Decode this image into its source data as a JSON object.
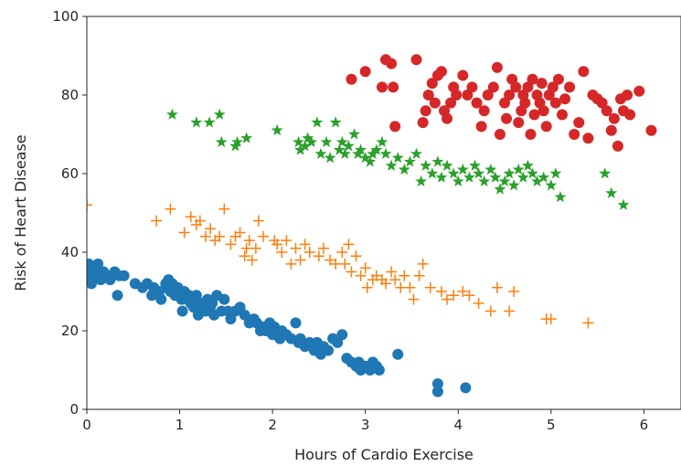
{
  "chart_data": {
    "type": "scatter",
    "title": "",
    "xlabel": "Hours of Cardio Exercise",
    "ylabel": "Risk of Heart Disease",
    "xlim": [
      0,
      6.4
    ],
    "ylim": [
      0,
      100
    ],
    "xticks": [
      0,
      1,
      2,
      3,
      4,
      5,
      6
    ],
    "yticks": [
      0,
      20,
      40,
      60,
      80,
      100
    ],
    "grid": false,
    "series": [
      {
        "color": "#1f77b4",
        "marker": "circle",
        "points": [
          [
            0.0,
            33
          ],
          [
            0.0,
            35
          ],
          [
            0.02,
            37
          ],
          [
            0.05,
            32
          ],
          [
            0.08,
            36
          ],
          [
            0.1,
            34
          ],
          [
            0.12,
            37
          ],
          [
            0.15,
            33
          ],
          [
            0.18,
            35
          ],
          [
            0.22,
            34
          ],
          [
            0.25,
            33
          ],
          [
            0.3,
            35
          ],
          [
            0.33,
            29
          ],
          [
            0.35,
            34
          ],
          [
            0.4,
            34
          ],
          [
            0.52,
            32
          ],
          [
            0.6,
            31
          ],
          [
            0.65,
            32
          ],
          [
            0.7,
            29
          ],
          [
            0.72,
            31
          ],
          [
            0.78,
            30
          ],
          [
            0.8,
            28
          ],
          [
            0.85,
            32
          ],
          [
            0.87,
            31
          ],
          [
            0.88,
            33
          ],
          [
            0.9,
            30
          ],
          [
            0.92,
            32
          ],
          [
            0.95,
            29
          ],
          [
            0.98,
            31
          ],
          [
            1.0,
            29
          ],
          [
            1.02,
            28
          ],
          [
            1.03,
            25
          ],
          [
            1.05,
            30
          ],
          [
            1.08,
            28
          ],
          [
            1.1,
            29
          ],
          [
            1.12,
            27
          ],
          [
            1.15,
            26
          ],
          [
            1.18,
            29
          ],
          [
            1.2,
            24
          ],
          [
            1.23,
            27
          ],
          [
            1.25,
            26
          ],
          [
            1.28,
            25
          ],
          [
            1.3,
            28
          ],
          [
            1.33,
            26
          ],
          [
            1.35,
            27
          ],
          [
            1.37,
            24
          ],
          [
            1.4,
            29
          ],
          [
            1.45,
            25
          ],
          [
            1.48,
            28
          ],
          [
            1.52,
            25
          ],
          [
            1.55,
            23
          ],
          [
            1.6,
            25
          ],
          [
            1.65,
            26
          ],
          [
            1.7,
            24
          ],
          [
            1.75,
            22
          ],
          [
            1.8,
            23
          ],
          [
            1.83,
            22
          ],
          [
            1.87,
            20
          ],
          [
            1.9,
            21
          ],
          [
            1.93,
            20
          ],
          [
            1.97,
            22
          ],
          [
            2.0,
            19
          ],
          [
            2.02,
            21
          ],
          [
            2.05,
            20
          ],
          [
            2.08,
            18
          ],
          [
            2.1,
            20
          ],
          [
            2.15,
            19
          ],
          [
            2.2,
            18
          ],
          [
            2.25,
            22
          ],
          [
            2.28,
            17
          ],
          [
            2.3,
            18
          ],
          [
            2.35,
            16
          ],
          [
            2.4,
            17
          ],
          [
            2.45,
            15
          ],
          [
            2.48,
            17
          ],
          [
            2.52,
            14
          ],
          [
            2.55,
            16
          ],
          [
            2.6,
            15
          ],
          [
            2.65,
            18
          ],
          [
            2.7,
            17
          ],
          [
            2.75,
            19
          ],
          [
            2.8,
            13
          ],
          [
            2.85,
            12
          ],
          [
            2.9,
            11
          ],
          [
            2.93,
            12
          ],
          [
            2.95,
            10
          ],
          [
            3.0,
            11
          ],
          [
            3.05,
            10
          ],
          [
            3.08,
            12
          ],
          [
            3.12,
            11
          ],
          [
            3.15,
            10
          ],
          [
            3.35,
            14
          ],
          [
            3.78,
            6.5
          ],
          [
            3.78,
            4.5
          ],
          [
            4.08,
            5.5
          ]
        ]
      },
      {
        "color": "#ff7f0e",
        "marker": "plus",
        "points": [
          [
            0.0,
            52
          ],
          [
            0.75,
            48
          ],
          [
            0.9,
            51
          ],
          [
            1.05,
            45
          ],
          [
            1.12,
            49
          ],
          [
            1.18,
            47
          ],
          [
            1.22,
            48
          ],
          [
            1.28,
            44
          ],
          [
            1.33,
            46
          ],
          [
            1.38,
            43
          ],
          [
            1.43,
            44
          ],
          [
            1.48,
            51
          ],
          [
            1.55,
            42
          ],
          [
            1.6,
            44
          ],
          [
            1.65,
            45
          ],
          [
            1.7,
            39
          ],
          [
            1.72,
            41
          ],
          [
            1.75,
            43
          ],
          [
            1.78,
            38
          ],
          [
            1.82,
            41
          ],
          [
            1.85,
            48
          ],
          [
            1.9,
            44
          ],
          [
            2.02,
            43
          ],
          [
            2.05,
            42
          ],
          [
            2.1,
            40
          ],
          [
            2.15,
            43
          ],
          [
            2.2,
            37
          ],
          [
            2.25,
            41
          ],
          [
            2.3,
            38
          ],
          [
            2.35,
            42
          ],
          [
            2.4,
            40
          ],
          [
            2.5,
            39
          ],
          [
            2.55,
            41
          ],
          [
            2.62,
            38
          ],
          [
            2.68,
            37
          ],
          [
            2.75,
            40
          ],
          [
            2.78,
            37
          ],
          [
            2.82,
            42
          ],
          [
            2.85,
            35
          ],
          [
            2.9,
            39
          ],
          [
            2.95,
            34
          ],
          [
            3.0,
            36
          ],
          [
            3.02,
            31
          ],
          [
            3.08,
            33
          ],
          [
            3.12,
            34
          ],
          [
            3.18,
            33
          ],
          [
            3.22,
            32
          ],
          [
            3.28,
            35
          ],
          [
            3.32,
            33
          ],
          [
            3.38,
            31
          ],
          [
            3.42,
            34
          ],
          [
            3.48,
            31
          ],
          [
            3.52,
            28
          ],
          [
            3.58,
            34
          ],
          [
            3.62,
            37
          ],
          [
            3.7,
            31
          ],
          [
            3.82,
            30
          ],
          [
            3.88,
            28
          ],
          [
            3.95,
            29
          ],
          [
            4.05,
            30
          ],
          [
            4.12,
            29
          ],
          [
            4.22,
            27
          ],
          [
            4.35,
            25
          ],
          [
            4.42,
            31
          ],
          [
            4.55,
            25
          ],
          [
            4.6,
            30
          ],
          [
            4.95,
            23
          ],
          [
            5.0,
            23
          ],
          [
            5.4,
            22
          ]
        ]
      },
      {
        "color": "#2ca02c",
        "marker": "star",
        "points": [
          [
            0.92,
            75
          ],
          [
            1.18,
            73
          ],
          [
            1.32,
            73
          ],
          [
            1.43,
            75
          ],
          [
            1.45,
            68
          ],
          [
            1.6,
            67
          ],
          [
            1.62,
            68
          ],
          [
            1.72,
            69
          ],
          [
            2.05,
            71
          ],
          [
            2.28,
            68
          ],
          [
            2.3,
            66
          ],
          [
            2.35,
            67
          ],
          [
            2.38,
            69
          ],
          [
            2.42,
            68
          ],
          [
            2.48,
            73
          ],
          [
            2.52,
            65
          ],
          [
            2.58,
            68
          ],
          [
            2.62,
            64
          ],
          [
            2.68,
            73
          ],
          [
            2.72,
            66
          ],
          [
            2.75,
            68
          ],
          [
            2.78,
            65
          ],
          [
            2.82,
            67
          ],
          [
            2.88,
            70
          ],
          [
            2.92,
            65
          ],
          [
            2.95,
            66
          ],
          [
            3.0,
            64
          ],
          [
            3.05,
            63
          ],
          [
            3.08,
            65
          ],
          [
            3.12,
            66
          ],
          [
            3.18,
            68
          ],
          [
            3.22,
            65
          ],
          [
            3.28,
            62
          ],
          [
            3.35,
            64
          ],
          [
            3.42,
            61
          ],
          [
            3.48,
            63
          ],
          [
            3.55,
            65
          ],
          [
            3.6,
            58
          ],
          [
            3.65,
            62
          ],
          [
            3.72,
            60
          ],
          [
            3.78,
            63
          ],
          [
            3.82,
            59
          ],
          [
            3.88,
            62
          ],
          [
            3.95,
            60
          ],
          [
            4.0,
            58
          ],
          [
            4.05,
            61
          ],
          [
            4.12,
            59
          ],
          [
            4.18,
            62
          ],
          [
            4.22,
            60
          ],
          [
            4.28,
            58
          ],
          [
            4.35,
            61
          ],
          [
            4.4,
            59
          ],
          [
            4.45,
            56
          ],
          [
            4.5,
            58
          ],
          [
            4.55,
            60
          ],
          [
            4.6,
            57
          ],
          [
            4.65,
            61
          ],
          [
            4.7,
            59
          ],
          [
            4.75,
            62
          ],
          [
            4.8,
            60
          ],
          [
            4.85,
            58
          ],
          [
            4.92,
            59
          ],
          [
            5.0,
            57
          ],
          [
            5.05,
            60
          ],
          [
            5.1,
            54
          ],
          [
            5.58,
            60
          ],
          [
            5.65,
            55
          ],
          [
            5.78,
            52
          ]
        ]
      },
      {
        "color": "#d62728",
        "marker": "circle",
        "points": [
          [
            2.85,
            84
          ],
          [
            3.0,
            86
          ],
          [
            3.18,
            82
          ],
          [
            3.22,
            89
          ],
          [
            3.28,
            88
          ],
          [
            3.3,
            82
          ],
          [
            3.32,
            72
          ],
          [
            3.55,
            89
          ],
          [
            3.62,
            73
          ],
          [
            3.65,
            76
          ],
          [
            3.68,
            80
          ],
          [
            3.72,
            83
          ],
          [
            3.75,
            78
          ],
          [
            3.78,
            85
          ],
          [
            3.82,
            86
          ],
          [
            3.85,
            76
          ],
          [
            3.88,
            74
          ],
          [
            3.92,
            78
          ],
          [
            3.95,
            82
          ],
          [
            3.98,
            80
          ],
          [
            4.05,
            85
          ],
          [
            4.1,
            80
          ],
          [
            4.15,
            82
          ],
          [
            4.2,
            78
          ],
          [
            4.25,
            72
          ],
          [
            4.28,
            76
          ],
          [
            4.32,
            80
          ],
          [
            4.38,
            82
          ],
          [
            4.42,
            87
          ],
          [
            4.45,
            70
          ],
          [
            4.5,
            78
          ],
          [
            4.52,
            74
          ],
          [
            4.55,
            80
          ],
          [
            4.58,
            84
          ],
          [
            4.62,
            82
          ],
          [
            4.65,
            73
          ],
          [
            4.68,
            76
          ],
          [
            4.7,
            80
          ],
          [
            4.72,
            78
          ],
          [
            4.75,
            82
          ],
          [
            4.78,
            70
          ],
          [
            4.8,
            84
          ],
          [
            4.82,
            75
          ],
          [
            4.85,
            80
          ],
          [
            4.88,
            78
          ],
          [
            4.9,
            83
          ],
          [
            4.92,
            76
          ],
          [
            4.95,
            72
          ],
          [
            4.98,
            80
          ],
          [
            5.02,
            82
          ],
          [
            5.05,
            78
          ],
          [
            5.08,
            84
          ],
          [
            5.12,
            75
          ],
          [
            5.15,
            79
          ],
          [
            5.2,
            82
          ],
          [
            5.25,
            70
          ],
          [
            5.3,
            73
          ],
          [
            5.35,
            86
          ],
          [
            5.4,
            69
          ],
          [
            5.45,
            80
          ],
          [
            5.5,
            79
          ],
          [
            5.55,
            78
          ],
          [
            5.6,
            76
          ],
          [
            5.65,
            71
          ],
          [
            5.68,
            74
          ],
          [
            5.72,
            67
          ],
          [
            5.75,
            79
          ],
          [
            5.78,
            76
          ],
          [
            5.82,
            80
          ],
          [
            5.85,
            75
          ],
          [
            5.95,
            81
          ],
          [
            6.08,
            71
          ]
        ]
      }
    ]
  }
}
